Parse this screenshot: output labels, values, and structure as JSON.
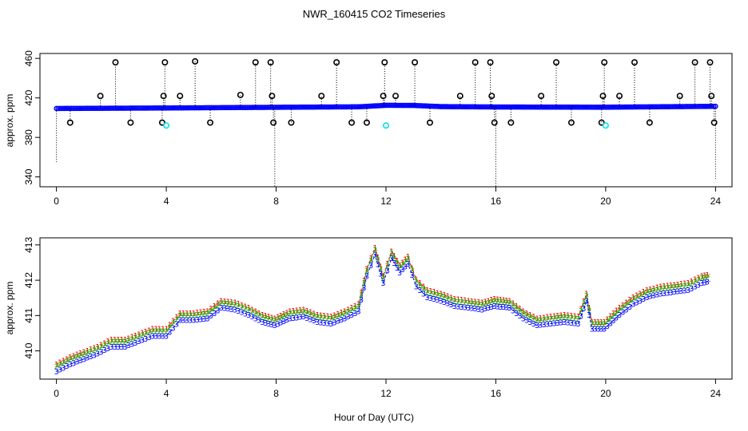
{
  "chart_data": [
    {
      "type": "scatter",
      "title": "NWR_160415  CO2 Timeseries",
      "xlabel": "",
      "ylabel": "approx. ppm",
      "xlim": [
        -0.6,
        24.6
      ],
      "ylim": [
        330,
        465
      ],
      "x_ticks": [
        "0",
        "4",
        "8",
        "12",
        "16",
        "20",
        "24"
      ],
      "y_ticks": [
        "340",
        "380",
        "420",
        "460"
      ],
      "series": [
        {
          "name": "baseline (blue)",
          "color": "#0000ff",
          "segments": [
            {
              "x": 0.0,
              "y": 409.3
            },
            {
              "x": 4.0,
              "y": 409.8
            },
            {
              "x": 8.0,
              "y": 410.5
            },
            {
              "x": 11.0,
              "y": 411.0
            },
            {
              "x": 12.0,
              "y": 412.5
            },
            {
              "x": 13.0,
              "y": 412.4
            },
            {
              "x": 14.0,
              "y": 411.2
            },
            {
              "x": 16.0,
              "y": 410.8
            },
            {
              "x": 20.0,
              "y": 410.6
            },
            {
              "x": 24.0,
              "y": 411.5
            }
          ]
        },
        {
          "name": "flagged (black)",
          "color": "#000000",
          "points": [
            {
              "x": 0.5,
              "y": 395
            },
            {
              "x": 1.6,
              "y": 422
            },
            {
              "x": 2.15,
              "y": 456
            },
            {
              "x": 2.7,
              "y": 395
            },
            {
              "x": 3.85,
              "y": 395
            },
            {
              "x": 3.9,
              "y": 422
            },
            {
              "x": 3.95,
              "y": 456
            },
            {
              "x": 4.5,
              "y": 422
            },
            {
              "x": 5.05,
              "y": 457
            },
            {
              "x": 5.6,
              "y": 395
            },
            {
              "x": 6.7,
              "y": 423
            },
            {
              "x": 7.25,
              "y": 456
            },
            {
              "x": 7.8,
              "y": 456
            },
            {
              "x": 7.85,
              "y": 422
            },
            {
              "x": 7.9,
              "y": 395
            },
            {
              "x": 8.55,
              "y": 395
            },
            {
              "x": 9.65,
              "y": 422
            },
            {
              "x": 10.2,
              "y": 456
            },
            {
              "x": 10.75,
              "y": 395
            },
            {
              "x": 11.3,
              "y": 395
            },
            {
              "x": 11.9,
              "y": 422
            },
            {
              "x": 11.95,
              "y": 456
            },
            {
              "x": 12.35,
              "y": 422
            },
            {
              "x": 13.05,
              "y": 456
            },
            {
              "x": 13.6,
              "y": 395
            },
            {
              "x": 14.7,
              "y": 422
            },
            {
              "x": 15.25,
              "y": 456
            },
            {
              "x": 15.8,
              "y": 456
            },
            {
              "x": 15.85,
              "y": 422
            },
            {
              "x": 15.95,
              "y": 395
            },
            {
              "x": 16.55,
              "y": 395
            },
            {
              "x": 17.65,
              "y": 422
            },
            {
              "x": 18.2,
              "y": 456
            },
            {
              "x": 18.75,
              "y": 395
            },
            {
              "x": 19.85,
              "y": 395
            },
            {
              "x": 19.9,
              "y": 422
            },
            {
              "x": 19.95,
              "y": 456
            },
            {
              "x": 20.5,
              "y": 422
            },
            {
              "x": 21.05,
              "y": 456
            },
            {
              "x": 21.6,
              "y": 395
            },
            {
              "x": 22.7,
              "y": 422
            },
            {
              "x": 23.25,
              "y": 456
            },
            {
              "x": 23.8,
              "y": 456
            },
            {
              "x": 23.85,
              "y": 422
            },
            {
              "x": 23.95,
              "y": 395
            }
          ]
        },
        {
          "name": "flagged (cyan)",
          "color": "#00e5ee",
          "points": [
            {
              "x": 4.0,
              "y": 392
            },
            {
              "x": 12.0,
              "y": 392
            },
            {
              "x": 20.0,
              "y": 392
            }
          ]
        }
      ],
      "drops": [
        {
          "x": 0.0,
          "y_from": 409,
          "y_to": 355
        },
        {
          "x": 7.95,
          "y_from": 409,
          "y_to": 330
        },
        {
          "x": 16.0,
          "y_from": 409,
          "y_to": 330
        },
        {
          "x": 24.0,
          "y_from": 409,
          "y_to": 338
        }
      ]
    },
    {
      "type": "line",
      "title": "",
      "xlabel": "Hour of Day (UTC)",
      "ylabel": "approx. ppm",
      "xlim": [
        -0.6,
        24.6
      ],
      "ylim": [
        409.2,
        413.2
      ],
      "x_ticks": [
        "0",
        "4",
        "8",
        "12",
        "16",
        "20",
        "24"
      ],
      "y_ticks": [
        "410",
        "411",
        "412",
        "413"
      ],
      "series": [
        {
          "name": "1",
          "color": "#ff0000",
          "marker": "1",
          "offset": 0.12,
          "x": [
            0,
            0.5,
            1,
            1.5,
            2,
            2.5,
            3,
            3.5,
            4,
            4.5,
            5,
            5.5,
            6,
            6.5,
            7,
            7.5,
            7.95,
            8.5,
            9,
            9.5,
            10,
            10.5,
            11,
            11.3,
            11.6,
            11.9,
            12.2,
            12.5,
            12.8,
            13.1,
            13.5,
            14,
            14.5,
            15,
            15.5,
            15.95,
            16.5,
            17,
            17.5,
            18,
            18.5,
            19,
            19.3,
            19.5,
            19.95,
            20.5,
            21,
            21.5,
            22,
            22.5,
            23,
            23.5,
            23.8
          ],
          "y": [
            409.5,
            409.7,
            409.85,
            410.0,
            410.2,
            410.2,
            410.35,
            410.5,
            410.5,
            410.95,
            410.95,
            411.0,
            411.3,
            411.25,
            411.1,
            410.9,
            410.8,
            411.0,
            411.05,
            410.9,
            410.85,
            411.0,
            411.2,
            412.2,
            412.8,
            412.0,
            412.7,
            412.3,
            412.55,
            411.9,
            411.6,
            411.5,
            411.35,
            411.3,
            411.25,
            411.35,
            411.3,
            411.0,
            410.8,
            410.85,
            410.9,
            410.85,
            411.5,
            410.7,
            410.7,
            411.1,
            411.4,
            411.6,
            411.7,
            411.75,
            411.8,
            412.0,
            412.05
          ]
        },
        {
          "name": "2",
          "color": "#00cd00",
          "marker": "2",
          "offset": 0.06,
          "x": [
            0,
            0.5,
            1,
            1.5,
            2,
            2.5,
            3,
            3.5,
            4,
            4.5,
            5,
            5.5,
            6,
            6.5,
            7,
            7.5,
            7.95,
            8.5,
            9,
            9.5,
            10,
            10.5,
            11,
            11.3,
            11.6,
            11.9,
            12.2,
            12.5,
            12.8,
            13.1,
            13.5,
            14,
            14.5,
            15,
            15.5,
            15.95,
            16.5,
            17,
            17.5,
            18,
            18.5,
            19,
            19.3,
            19.5,
            19.95,
            20.5,
            21,
            21.5,
            22,
            22.5,
            23,
            23.5,
            23.8
          ],
          "y": [
            409.5,
            409.7,
            409.85,
            410.0,
            410.2,
            410.2,
            410.35,
            410.5,
            410.5,
            410.95,
            410.95,
            411.0,
            411.3,
            411.25,
            411.1,
            410.9,
            410.8,
            411.0,
            411.05,
            410.9,
            410.85,
            411.0,
            411.2,
            412.2,
            412.8,
            412.0,
            412.7,
            412.3,
            412.55,
            411.9,
            411.6,
            411.5,
            411.35,
            411.3,
            411.25,
            411.35,
            411.3,
            411.0,
            410.8,
            410.85,
            410.9,
            410.85,
            411.5,
            410.7,
            410.7,
            411.1,
            411.4,
            411.6,
            411.7,
            411.75,
            411.8,
            412.0,
            412.05
          ]
        },
        {
          "name": "3",
          "color": "#0000ff",
          "marker": "3",
          "offset": -0.08,
          "x": [
            0,
            0.5,
            1,
            1.5,
            2,
            2.5,
            3,
            3.5,
            4,
            4.5,
            5,
            5.5,
            6,
            6.5,
            7,
            7.5,
            7.95,
            8.5,
            9,
            9.5,
            10,
            10.5,
            11,
            11.3,
            11.6,
            11.9,
            12.2,
            12.5,
            12.8,
            13.1,
            13.5,
            14,
            14.5,
            15,
            15.5,
            15.95,
            16.5,
            17,
            17.5,
            18,
            18.5,
            19,
            19.3,
            19.5,
            19.95,
            20.5,
            21,
            21.5,
            22,
            22.5,
            23,
            23.5,
            23.8
          ],
          "y": [
            409.5,
            409.7,
            409.85,
            410.0,
            410.2,
            410.2,
            410.35,
            410.5,
            410.5,
            410.95,
            410.95,
            411.0,
            411.3,
            411.25,
            411.1,
            410.9,
            410.8,
            411.0,
            411.05,
            410.9,
            410.85,
            411.0,
            411.2,
            412.2,
            412.8,
            412.0,
            412.7,
            412.3,
            412.55,
            411.9,
            411.6,
            411.5,
            411.35,
            411.3,
            411.25,
            411.35,
            411.3,
            411.0,
            410.8,
            410.85,
            410.9,
            410.85,
            411.5,
            410.7,
            410.7,
            411.1,
            411.4,
            411.6,
            411.7,
            411.75,
            411.8,
            412.0,
            412.05
          ]
        }
      ]
    }
  ]
}
